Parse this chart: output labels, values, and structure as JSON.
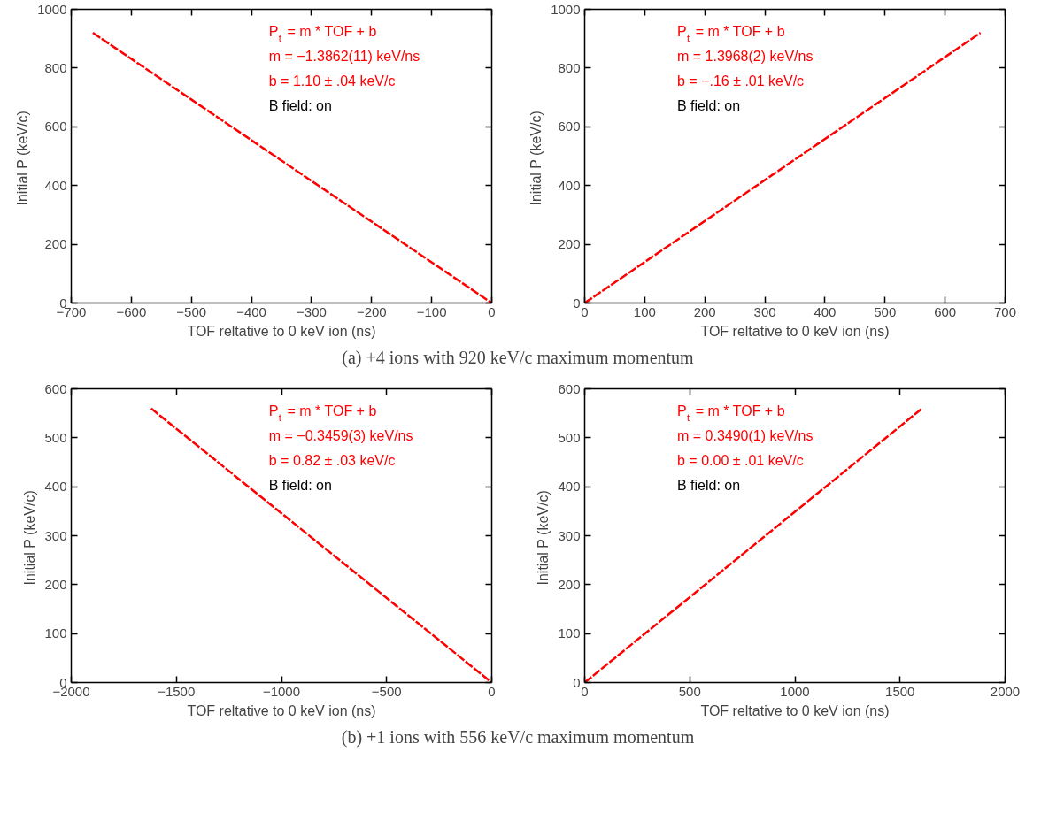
{
  "chart_data": [
    {
      "type": "line",
      "xlabel": "TOF reltative to 0 keV ion (ns)",
      "ylabel": "Initial P  (keV/c)",
      "subtitle": "(a) +4 ions with 920 keV/c maximum momentum",
      "xlim": [
        -700,
        0
      ],
      "ylim": [
        0,
        1000
      ],
      "xticks": [
        -700,
        -600,
        -500,
        -400,
        -300,
        -200,
        -100,
        0
      ],
      "yticks": [
        0,
        200,
        400,
        600,
        800,
        1000
      ],
      "grid": false,
      "line_style": "dashed",
      "series": [
        {
          "color": "#ff0000",
          "x": [
            -664,
            0
          ],
          "values": [
            920,
            0
          ]
        }
      ],
      "annotations": [
        "P$_{t}$ = m * TOF + b",
        "m =   −1.3862(11) keV/ns",
        "b = 1.10 ± .04 keV/c",
        "B field: on"
      ]
    },
    {
      "type": "line",
      "xlabel": "TOF reltative to 0 keV ion (ns)",
      "ylabel": "Initial P  (keV/c)",
      "xlim": [
        0,
        700
      ],
      "ylim": [
        0,
        1000
      ],
      "xticks": [
        0,
        100,
        200,
        300,
        400,
        500,
        600,
        700
      ],
      "yticks": [
        0,
        200,
        400,
        600,
        800,
        1000
      ],
      "grid": false,
      "line_style": "dashed",
      "series": [
        {
          "color": "#ff0000",
          "x": [
            0,
            659
          ],
          "values": [
            0,
            920
          ]
        }
      ],
      "annotations": [
        "P$_{t}$ = m * TOF + b",
        "m =    1.3968(2) keV/ns",
        "b = −.16 ± .01 keV/c",
        "B field: on"
      ]
    },
    {
      "type": "line",
      "xlabel": "TOF reltative to 0 keV ion (ns)",
      "ylabel": "Initial P  (keV/c)",
      "subtitle": "(b) +1 ions with 556 keV/c maximum momentum",
      "xlim": [
        -2000,
        0
      ],
      "ylim": [
        0,
        600
      ],
      "xticks": [
        -2000,
        -1500,
        -1000,
        -500,
        0
      ],
      "yticks": [
        0,
        100,
        200,
        300,
        400,
        500,
        600
      ],
      "grid": false,
      "line_style": "dashed",
      "series": [
        {
          "color": "#ff0000",
          "x": [
            -1620,
            0
          ],
          "values": [
            560,
            0
          ]
        }
      ],
      "annotations": [
        "P$_{t}$ = m * TOF + b",
        "m =   −0.3459(3) keV/ns",
        "b = 0.82 ± .03 keV/c",
        "B field: on"
      ]
    },
    {
      "type": "line",
      "xlabel": "TOF reltative to 0 keV ion (ns)",
      "ylabel": "Initial P  (keV/c)",
      "xlim": [
        0,
        2000
      ],
      "ylim": [
        0,
        600
      ],
      "xticks": [
        0,
        500,
        1000,
        1500,
        2000
      ],
      "yticks": [
        0,
        100,
        200,
        300,
        400,
        500,
        600
      ],
      "grid": false,
      "line_style": "dashed",
      "series": [
        {
          "color": "#ff0000",
          "x": [
            0,
            1605
          ],
          "values": [
            0,
            560
          ]
        }
      ],
      "annotations": [
        "P$_{t}$ = m * TOF + b",
        "m =    0.3490(1) keV/ns",
        "b = 0.00 ± .01 keV/c",
        "B field: on"
      ]
    }
  ]
}
